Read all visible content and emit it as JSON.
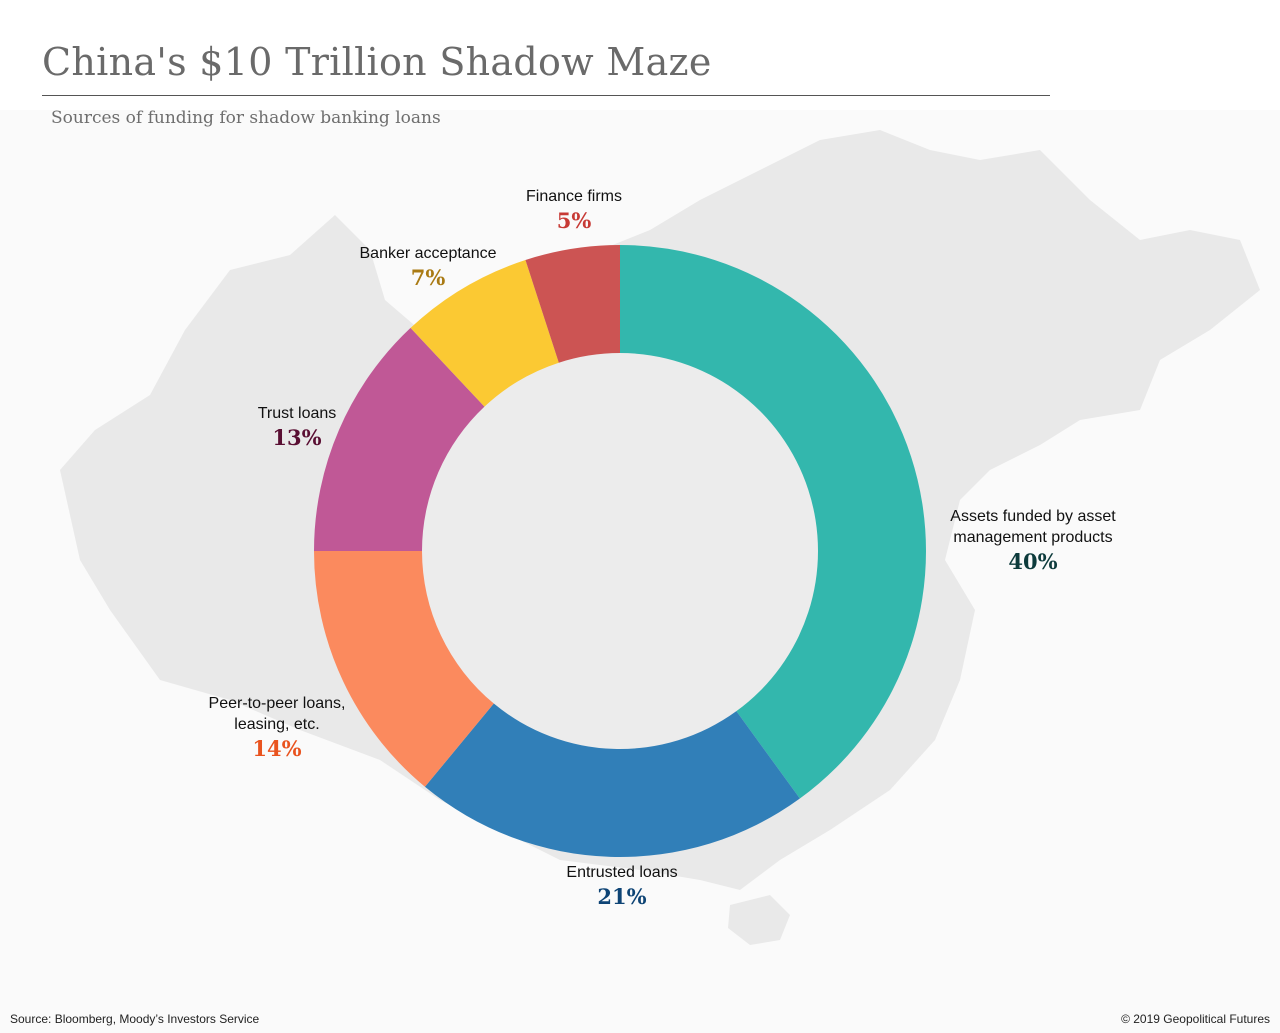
{
  "title": "China's $10 Trillion Shadow Maze",
  "subtitle": "Sources of funding for shadow banking loans",
  "source": "Source: Bloomberg, Moody’s Investors Service",
  "credit": "© 2019 Geopolitical Futures",
  "chart_data": {
    "type": "pie",
    "donut": true,
    "unit": "%",
    "slices": [
      {
        "label": "Assets funded by asset management products",
        "label_lines": [
          "Assets funded by asset",
          "management products"
        ],
        "value": 40,
        "value_label": "40%",
        "color": "#33b7ad",
        "label_color": "#0d3b3c"
      },
      {
        "label": "Entrusted loans",
        "label_lines": [
          "Entrusted loans"
        ],
        "value": 21,
        "value_label": "21%",
        "color": "#317fb8",
        "label_color": "#0e4475"
      },
      {
        "label": "Peer-to-peer loans, leasing, etc.",
        "label_lines": [
          "Peer-to-peer loans,",
          "leasing, etc."
        ],
        "value": 14,
        "value_label": "14%",
        "color": "#fb8a5e",
        "label_color": "#e9531e"
      },
      {
        "label": "Trust loans",
        "label_lines": [
          "Trust loans"
        ],
        "value": 13,
        "value_label": "13%",
        "color": "#c05896",
        "label_color": "#5a0f33"
      },
      {
        "label": "Banker acceptance",
        "label_lines": [
          "Banker acceptance"
        ],
        "value": 7,
        "value_label": "7%",
        "color": "#fbc933",
        "label_color": "#a97a13"
      },
      {
        "label": "Finance firms",
        "label_lines": [
          "Finance firms"
        ],
        "value": 5,
        "value_label": "5%",
        "color": "#cc5453",
        "label_color": "#c73a35"
      }
    ]
  }
}
